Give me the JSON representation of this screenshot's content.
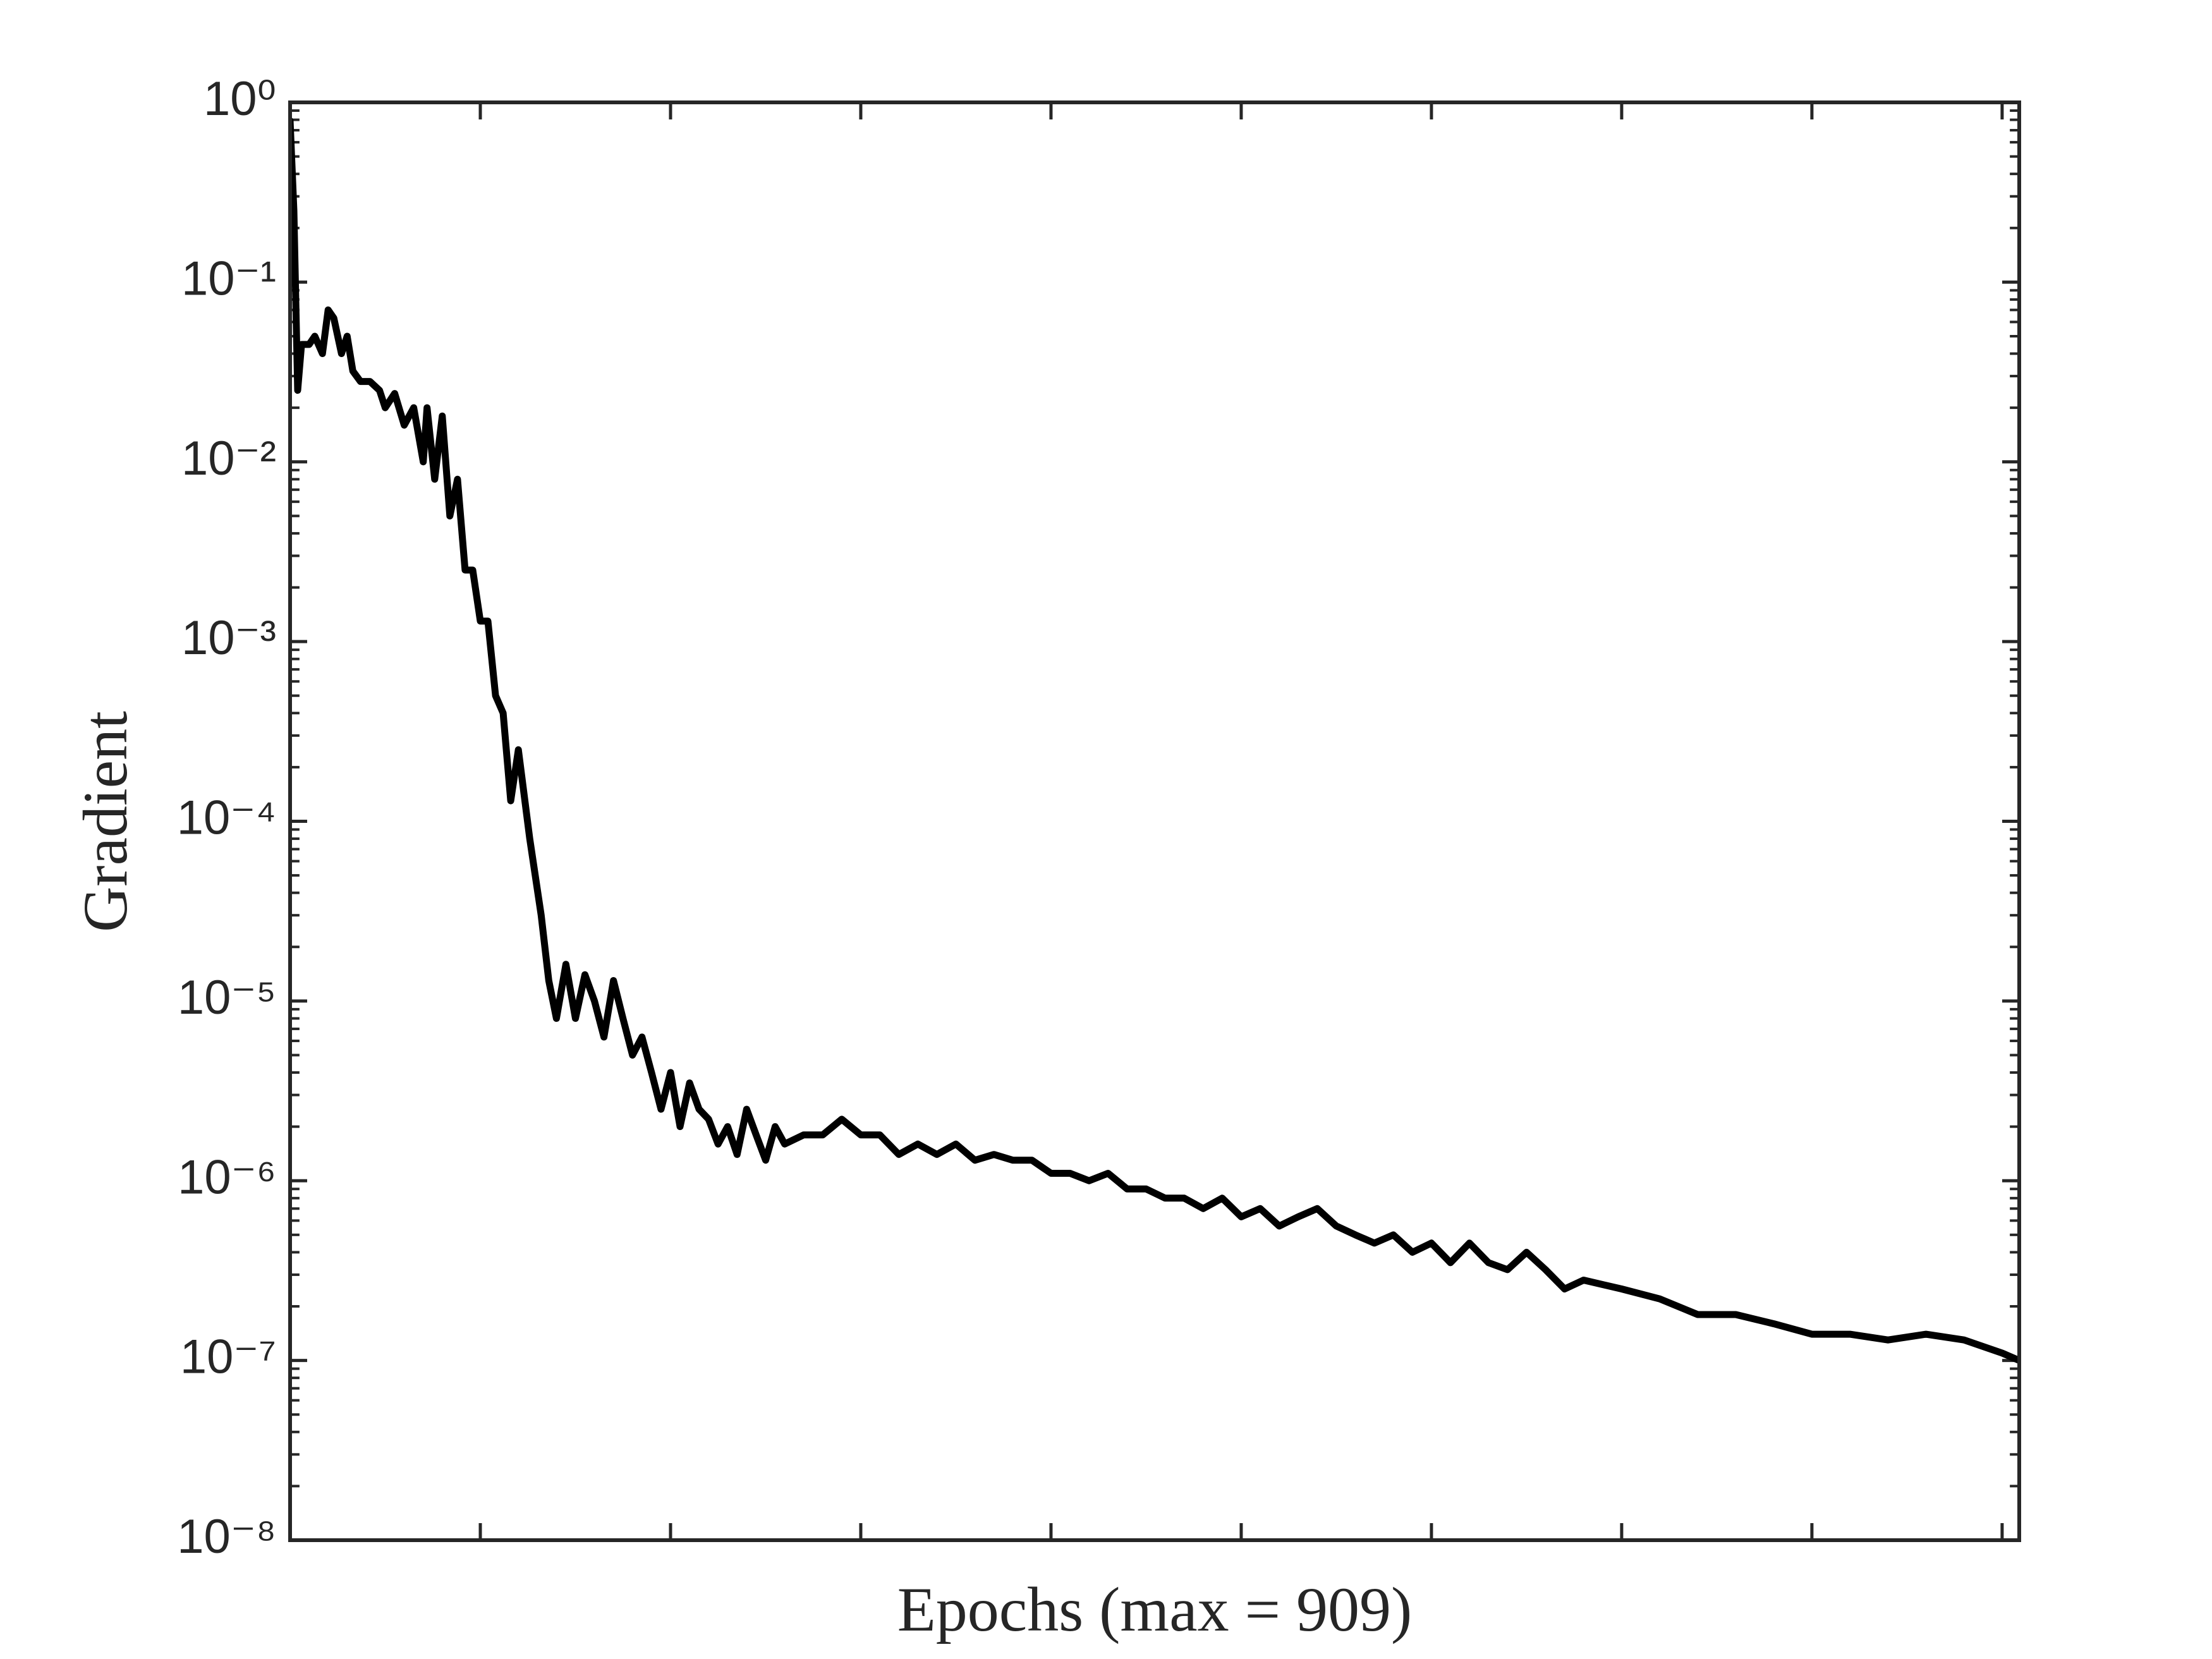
{
  "chart_data": {
    "type": "line",
    "x_label": "Epochs (max = 909)",
    "y_label": "Gradient",
    "log_y": true,
    "color": "#000000",
    "xlim": [
      0,
      909
    ],
    "xticks": [
      100,
      200,
      300,
      400,
      500,
      600,
      700,
      800,
      900
    ],
    "ylim": [
      1e-08,
      1
    ],
    "yticks": [
      {
        "value": 1e-08,
        "label": "10⁻⁸"
      },
      {
        "value": 1e-07,
        "label": "10⁻⁷"
      },
      {
        "value": 1e-06,
        "label": "10⁻⁶"
      },
      {
        "value": 1e-05,
        "label": "10⁻⁵"
      },
      {
        "value": 0.0001,
        "label": "10⁻⁴"
      },
      {
        "value": 0.001,
        "label": "10⁻³"
      },
      {
        "value": 0.01,
        "label": "10⁻²"
      },
      {
        "value": 0.1,
        "label": "10⁻¹"
      },
      {
        "value": 1,
        "label": "10⁰"
      }
    ],
    "x": [
      0,
      2,
      4,
      6,
      10,
      13,
      17,
      20,
      23,
      27,
      30,
      33,
      37,
      42,
      47,
      50,
      55,
      60,
      65,
      70,
      72,
      76,
      80,
      84,
      88,
      92,
      96,
      100,
      104,
      108,
      112,
      116,
      120,
      126,
      132,
      136,
      140,
      145,
      150,
      155,
      160,
      165,
      170,
      175,
      180,
      185,
      190,
      195,
      200,
      205,
      210,
      215,
      220,
      225,
      230,
      235,
      240,
      245,
      250,
      255,
      260,
      270,
      280,
      290,
      300,
      310,
      320,
      330,
      340,
      350,
      360,
      370,
      380,
      390,
      400,
      410,
      420,
      430,
      440,
      450,
      460,
      470,
      480,
      490,
      500,
      510,
      520,
      530,
      540,
      550,
      560,
      570,
      580,
      590,
      600,
      610,
      620,
      630,
      640,
      650,
      660,
      670,
      680,
      700,
      720,
      740,
      760,
      780,
      800,
      820,
      840,
      860,
      880,
      900,
      909
    ],
    "values": [
      0.79,
      0.25,
      0.025,
      0.045,
      0.045,
      0.05,
      0.04,
      0.07,
      0.063,
      0.04,
      0.05,
      0.032,
      0.028,
      0.028,
      0.025,
      0.02,
      0.024,
      0.016,
      0.02,
      0.01,
      0.02,
      0.008,
      0.018,
      0.005,
      0.008,
      0.0025,
      0.0025,
      0.0013,
      0.0013,
      0.0005,
      0.0004,
      0.00013,
      0.00025,
      8e-05,
      3e-05,
      1.3e-05,
      8e-06,
      1.6e-05,
      8e-06,
      1.4e-05,
      1e-05,
      6.3e-06,
      1.3e-05,
      8e-06,
      5e-06,
      6.3e-06,
      4e-06,
      2.5e-06,
      4e-06,
      2e-06,
      3.5e-06,
      2.5e-06,
      2.2e-06,
      1.6e-06,
      2e-06,
      1.4e-06,
      2.5e-06,
      1.8e-06,
      1.3e-06,
      2e-06,
      1.6e-06,
      1.8e-06,
      1.8e-06,
      2.2e-06,
      1.8e-06,
      1.8e-06,
      1.4e-06,
      1.6e-06,
      1.4e-06,
      1.6e-06,
      1.3e-06,
      1.4e-06,
      1.3e-06,
      1.3e-06,
      1.1e-06,
      1.1e-06,
      1e-06,
      1.1e-06,
      9e-07,
      9e-07,
      8e-07,
      8e-07,
      7e-07,
      8e-07,
      6.3e-07,
      7e-07,
      5.6e-07,
      6.3e-07,
      7e-07,
      5.6e-07,
      5e-07,
      4.5e-07,
      5e-07,
      4e-07,
      4.5e-07,
      3.5e-07,
      4.5e-07,
      3.5e-07,
      3.2e-07,
      4e-07,
      3.2e-07,
      2.5e-07,
      2.8e-07,
      2.5e-07,
      2.2e-07,
      1.8e-07,
      1.8e-07,
      1.6e-07,
      1.4e-07,
      1.4e-07,
      1.3e-07,
      1.4e-07,
      1.3e-07,
      1.1e-07,
      1e-07
    ]
  }
}
